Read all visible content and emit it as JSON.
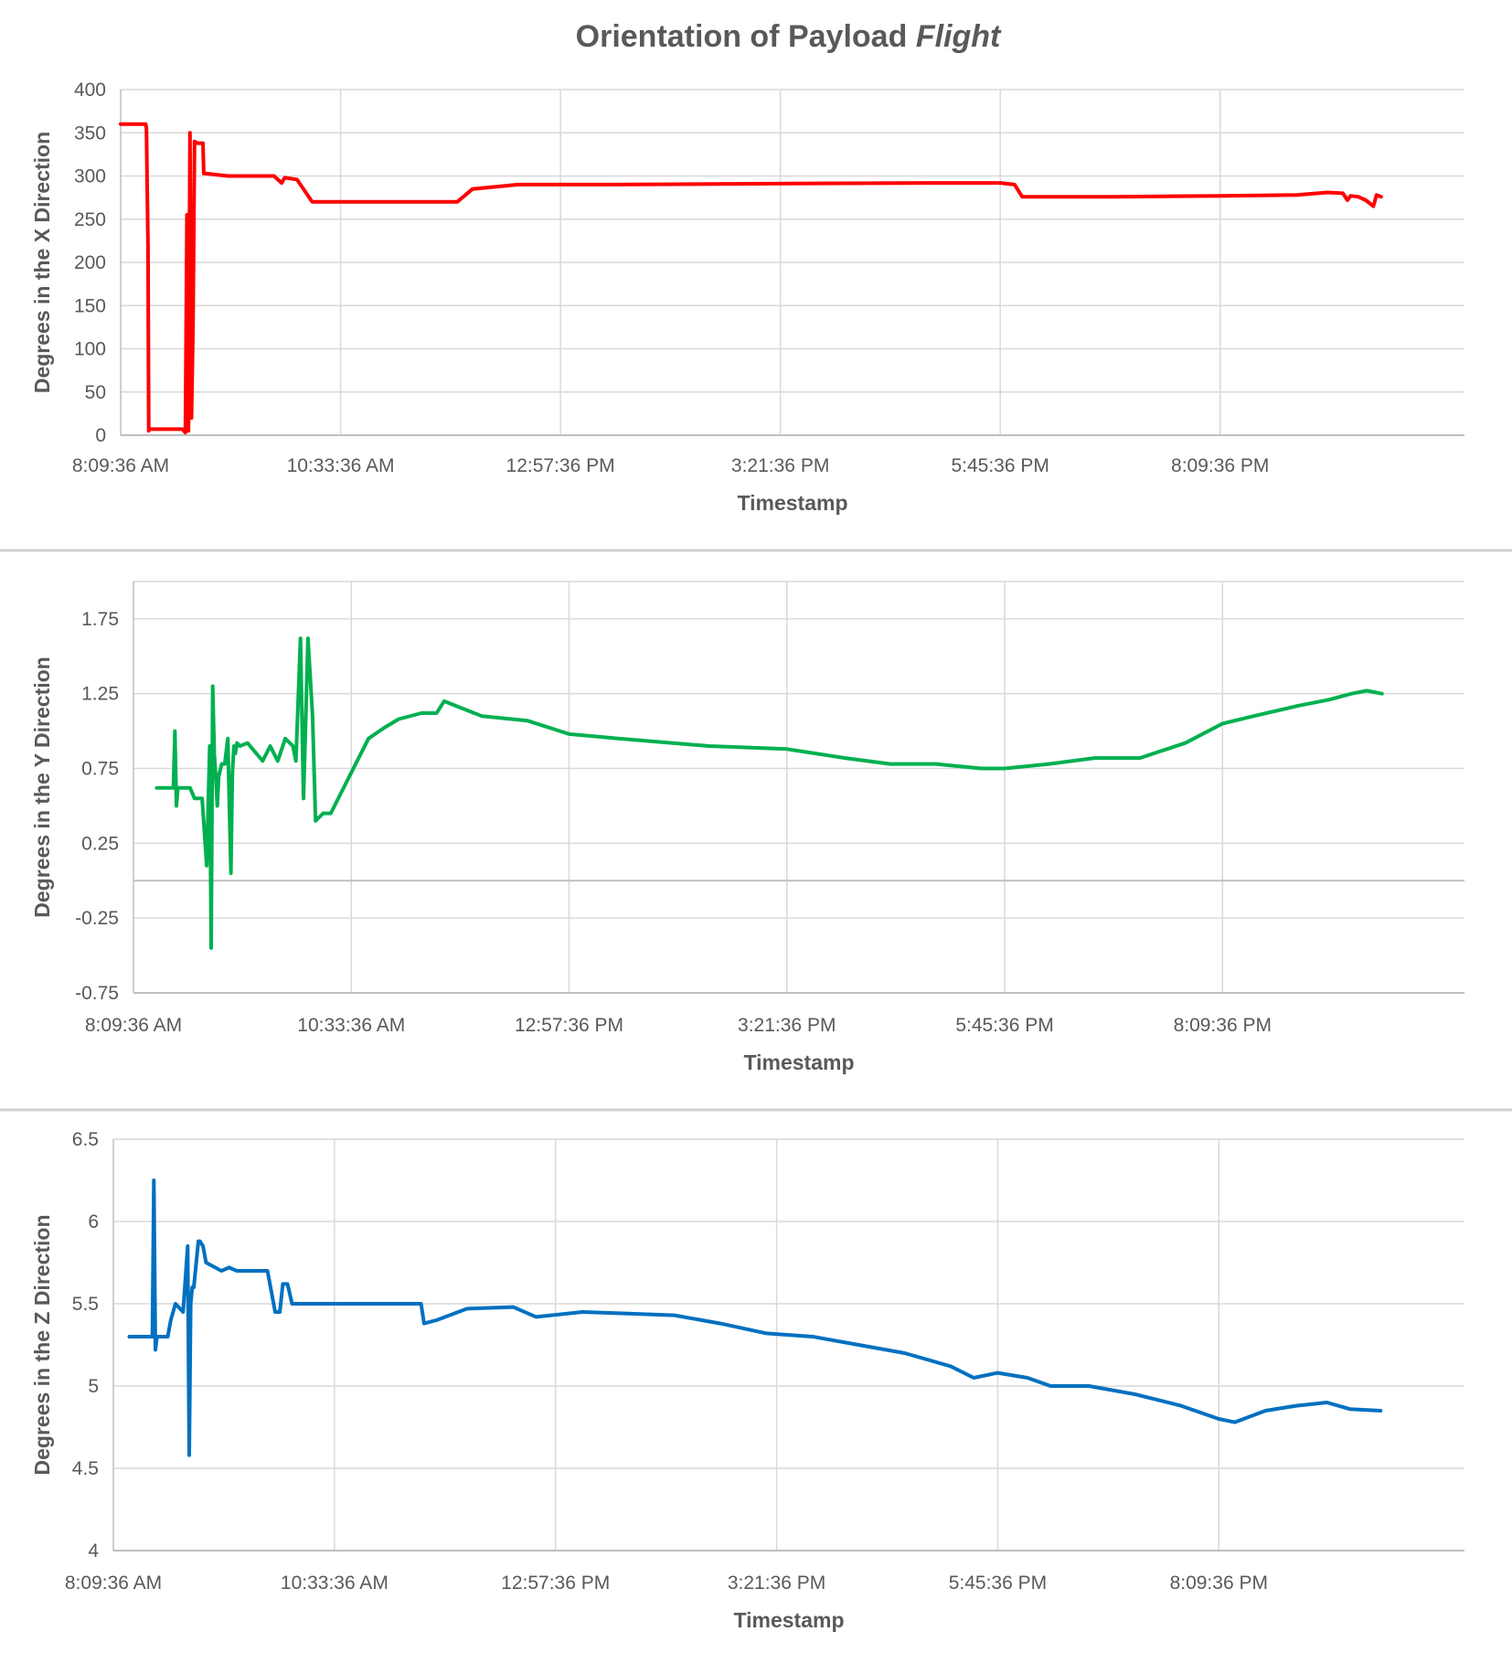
{
  "title": {
    "text": "Orientation of Payload ",
    "italic": "Flight"
  },
  "chart_data": [
    {
      "type": "line",
      "xlabel": "Timestamp",
      "ylabel": "Degrees in the X Direction",
      "xticks": [
        "8:09:36 AM",
        "10:33:36 AM",
        "12:57:36 PM",
        "3:21:36 PM",
        "5:45:36 PM",
        "8:09:36 PM"
      ],
      "yticks": [
        "0",
        "50",
        "100",
        "150",
        "200",
        "250",
        "300",
        "350",
        "400"
      ],
      "ylim": [
        0,
        400
      ],
      "color": "#ff0000",
      "series": [
        {
          "x": [
            "8:09:36 AM",
            "8:26:00 AM",
            "8:26:30 AM",
            "8:27:00 AM",
            "8:27:30 AM",
            "8:28:00 AM",
            "8:28:30 AM",
            "8:30:00 AM",
            "8:35:00 AM",
            "8:40:00 AM",
            "8:50:00 AM",
            "8:52:00 AM",
            "8:53:00 AM",
            "8:54:00 AM",
            "8:55:00 AM",
            "8:56:00 AM",
            "8:57:00 AM",
            "8:58:00 AM",
            "9:00:00 AM",
            "9:01:00 AM",
            "9:03:00 AM",
            "9:03:30 AM",
            "9:04:00 AM",
            "9:05:00 AM",
            "9:10:00 AM",
            "9:15:00 AM",
            "9:20:00 AM",
            "9:30:00 AM",
            "9:40:00 AM",
            "9:50:00 AM",
            "9:55:00 AM",
            "9:57:00 AM",
            "10:05:00 AM",
            "10:15:00 AM",
            "10:20:00 AM",
            "11:00:00 AM",
            "11:30:00 AM",
            "11:50:00 AM",
            "12:00:00 PM",
            "12:30:00 PM",
            "1:30:00 PM",
            "3:00:00 PM",
            "5:00:00 PM",
            "5:45:36 PM",
            "5:55:00 PM",
            "6:00:00 PM",
            "7:00:00 PM",
            "8:09:36 PM",
            "9:00:00 PM",
            "9:20:00 PM",
            "9:30:00 PM",
            "9:33:00 PM",
            "9:35:00 PM",
            "9:40:00 PM",
            "9:45:00 PM",
            "9:50:00 PM",
            "9:52:00 PM",
            "9:55:00 PM"
          ],
          "y": [
            360,
            360,
            355,
            280,
            220,
            5,
            7,
            7,
            7,
            7,
            7,
            3,
            255,
            5,
            350,
            20,
            130,
            340,
            338,
            338,
            338,
            338,
            303,
            303,
            302,
            301,
            300,
            300,
            300,
            300,
            292,
            298,
            296,
            270,
            270,
            270,
            270,
            270,
            285,
            290,
            290,
            291,
            292,
            292,
            290,
            276,
            276,
            277,
            278,
            281,
            280,
            272,
            277,
            276,
            272,
            265,
            278,
            276
          ]
        }
      ]
    },
    {
      "type": "line",
      "xlabel": "Timestamp",
      "ylabel": "Degrees in the Y Direction",
      "xticks": [
        "8:09:36 AM",
        "10:33:36 AM",
        "12:57:36 PM",
        "3:21:36 PM",
        "5:45:36 PM",
        "8:09:36 PM"
      ],
      "yticks": [
        "-0.75",
        "-0.25",
        "0.25",
        "0.75",
        "1.25",
        "1.75"
      ],
      "ylim": [
        -0.75,
        2.0
      ],
      "color": "#00b050",
      "series": [
        {
          "x": [
            "8:25:00 AM",
            "8:36:00 AM",
            "8:37:00 AM",
            "8:38:00 AM",
            "8:39:00 AM",
            "8:40:00 AM",
            "8:47:00 AM",
            "8:50:00 AM",
            "8:55:00 AM",
            "8:58:00 AM",
            "9:00:00 AM",
            "9:01:00 AM",
            "9:02:00 AM",
            "9:03:00 AM",
            "9:04:00 AM",
            "9:05:00 AM",
            "9:06:00 AM",
            "9:08:00 AM",
            "9:10:00 AM",
            "9:12:00 AM",
            "9:14:00 AM",
            "9:15:00 AM",
            "9:16:00 AM",
            "9:17:00 AM",
            "9:18:00 AM",
            "9:20:00 AM",
            "9:25:00 AM",
            "9:35:00 AM",
            "9:40:00 AM",
            "9:45:00 AM",
            "9:50:00 AM",
            "9:55:00 AM",
            "9:57:00 AM",
            "10:00:00 AM",
            "10:02:00 AM",
            "10:05:00 AM",
            "10:08:00 AM",
            "10:10:00 AM",
            "10:15:00 AM",
            "10:20:00 AM",
            "10:35:00 AM",
            "10:45:00 AM",
            "10:55:00 AM",
            "11:05:00 AM",
            "11:20:00 AM",
            "11:30:00 AM",
            "11:35:00 AM",
            "11:45:00 AM",
            "12:00:00 PM",
            "12:30:00 PM",
            "12:57:36 PM",
            "1:30:00 PM",
            "2:30:00 PM",
            "3:21:36 PM",
            "4:00:00 PM",
            "4:30:00 PM",
            "5:00:00 PM",
            "5:30:00 PM",
            "5:45:36 PM",
            "6:15:00 PM",
            "6:45:00 PM",
            "7:15:00 PM",
            "7:45:00 PM",
            "8:09:36 PM",
            "8:30:00 PM",
            "9:00:00 PM",
            "9:20:00 PM",
            "9:35:00 PM",
            "9:45:00 PM",
            "9:55:00 PM"
          ],
          "y": [
            0.62,
            0.62,
            1.0,
            0.5,
            0.62,
            0.62,
            0.62,
            0.55,
            0.55,
            0.1,
            0.9,
            -0.45,
            1.3,
            0.85,
            0.7,
            0.5,
            0.7,
            0.78,
            0.78,
            0.95,
            0.05,
            0.72,
            0.9,
            0.85,
            0.92,
            0.9,
            0.92,
            0.8,
            0.9,
            0.8,
            0.95,
            0.9,
            0.8,
            1.62,
            0.55,
            1.62,
            1.1,
            0.4,
            0.45,
            0.45,
            0.75,
            0.95,
            1.02,
            1.08,
            1.12,
            1.12,
            1.2,
            1.16,
            1.1,
            1.07,
            0.98,
            0.95,
            0.9,
            0.88,
            0.82,
            0.78,
            0.78,
            0.75,
            0.75,
            0.78,
            0.82,
            0.82,
            0.92,
            1.05,
            1.1,
            1.17,
            1.21,
            1.25,
            1.27,
            1.25
          ]
        }
      ]
    },
    {
      "type": "line",
      "xlabel": "Timestamp",
      "ylabel": "Degrees in the Z Direction",
      "xticks": [
        "8:09:36 AM",
        "10:33:36 AM",
        "12:57:36 PM",
        "3:21:36 PM",
        "5:45:36 PM",
        "8:09:36 PM"
      ],
      "yticks": [
        "4",
        "4.5",
        "5",
        "5.5",
        "6",
        "6.5"
      ],
      "ylim": [
        4,
        6.5
      ],
      "color": "#0070c0",
      "series": [
        {
          "x": [
            "8:20:00 AM",
            "8:35:00 AM",
            "8:36:00 AM",
            "8:37:00 AM",
            "8:38:00 AM",
            "8:40:00 AM",
            "8:45:00 AM",
            "8:47:00 AM",
            "8:50:00 AM",
            "8:55:00 AM",
            "8:58:00 AM",
            "8:59:00 AM",
            "9:00:00 AM",
            "9:01:00 AM",
            "9:02:00 AM",
            "9:05:00 AM",
            "9:06:00 AM",
            "9:08:00 AM",
            "9:10:00 AM",
            "9:20:00 AM",
            "9:25:00 AM",
            "9:30:00 AM",
            "9:40:00 AM",
            "9:50:00 AM",
            "9:55:00 AM",
            "9:58:00 AM",
            "10:00:00 AM",
            "10:03:00 AM",
            "10:06:00 AM",
            "10:08:00 AM",
            "10:10:00 AM",
            "10:11:00 AM",
            "10:20:00 AM",
            "10:40:00 AM",
            "11:00:00 AM",
            "11:20:00 AM",
            "11:30:00 AM",
            "11:32:00 AM",
            "11:40:00 AM",
            "12:00:00 PM",
            "12:30:00 PM",
            "12:45:00 PM",
            "1:15:00 PM",
            "1:45:00 PM",
            "2:15:00 PM",
            "2:45:00 PM",
            "3:15:00 PM",
            "3:45:00 PM",
            "4:15:00 PM",
            "4:45:00 PM",
            "5:15:00 PM",
            "5:30:00 PM",
            "5:45:36 PM",
            "6:05:00 PM",
            "6:20:00 PM",
            "6:45:00 PM",
            "7:15:00 PM",
            "7:45:00 PM",
            "8:09:36 PM",
            "8:20:00 PM",
            "8:40:00 PM",
            "9:00:00 PM",
            "9:20:00 PM",
            "9:35:00 PM",
            "9:55:00 PM"
          ],
          "y": [
            5.3,
            5.3,
            6.25,
            5.22,
            5.3,
            5.3,
            5.3,
            5.4,
            5.5,
            5.45,
            5.85,
            4.58,
            5.5,
            5.6,
            5.6,
            5.88,
            5.88,
            5.85,
            5.75,
            5.7,
            5.72,
            5.7,
            5.7,
            5.7,
            5.45,
            5.45,
            5.62,
            5.62,
            5.5,
            5.5,
            5.5,
            5.5,
            5.5,
            5.5,
            5.5,
            5.5,
            5.5,
            5.38,
            5.4,
            5.47,
            5.48,
            5.42,
            5.45,
            5.44,
            5.43,
            5.38,
            5.32,
            5.3,
            5.25,
            5.2,
            5.12,
            5.05,
            5.08,
            5.05,
            5.0,
            5.0,
            4.95,
            4.88,
            4.8,
            4.78,
            4.85,
            4.88,
            4.9,
            4.86,
            4.85
          ]
        }
      ]
    }
  ]
}
